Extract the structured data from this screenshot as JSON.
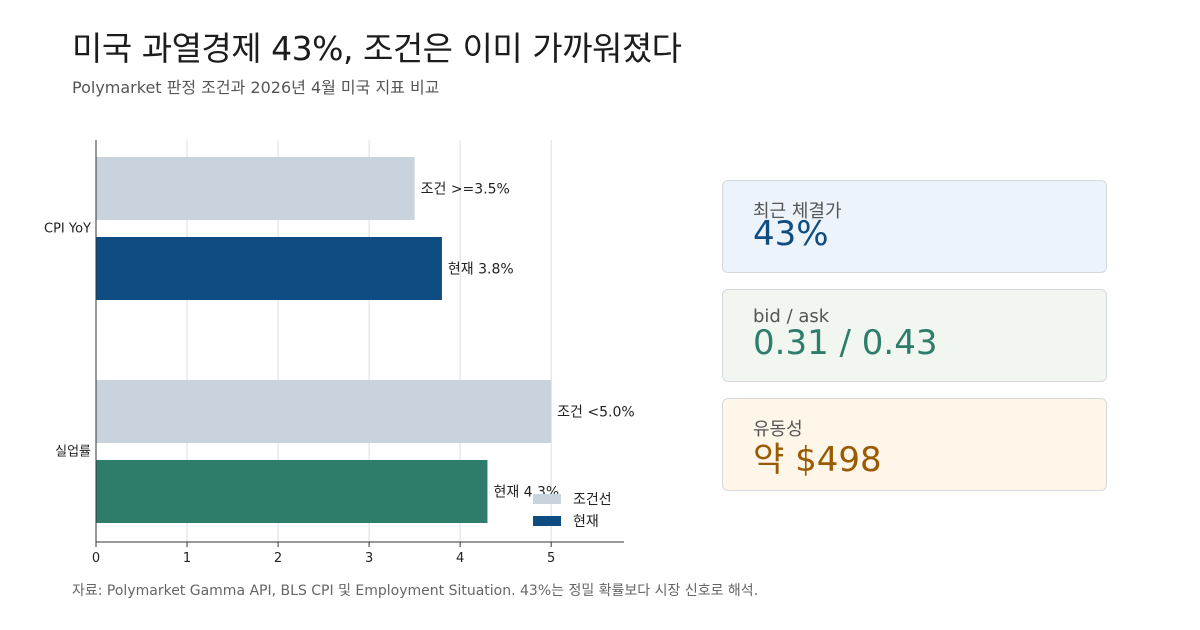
{
  "header": {
    "title": "미국 과열경제 43%, 조건은 이미 가까워졌다",
    "subtitle": "Polymarket 판정 조건과 2026년 4월 미국 지표 비교"
  },
  "chart_data": {
    "type": "bar",
    "orientation": "horizontal",
    "categories": [
      "CPI YoY",
      "실업률"
    ],
    "series": [
      {
        "name": "조건선",
        "values": [
          3.5,
          5.0
        ],
        "labels": [
          "조건 >=3.5%",
          "조건 <5.0%"
        ],
        "color": "#c9d3de"
      },
      {
        "name": "현재",
        "values": [
          3.8,
          4.3
        ],
        "labels": [
          "현재 3.8%",
          "현재 4.3%"
        ],
        "colors": [
          "#0f4c81",
          "#2e7d6b"
        ]
      }
    ],
    "xlim": [
      0,
      5.8
    ],
    "x_ticks": [
      "0",
      "1",
      "2",
      "3",
      "4",
      "5"
    ],
    "grid": true,
    "legend_position": "bottom-right"
  },
  "cards": [
    {
      "label": "최근 체결가",
      "value": "43%",
      "bg": "#edf3fa",
      "value_color": "#0f4c81"
    },
    {
      "label": "bid / ask",
      "value": "0.31 / 0.43",
      "bg": "#f1f6f1",
      "value_color": "#2e7d6b"
    },
    {
      "label": "유동성",
      "value": "약 $498",
      "bg": "#fdf6e9",
      "value_color": "#9a5a00"
    }
  ],
  "footer": {
    "source": "자료: Polymarket Gamma API, BLS CPI 및 Employment Situation. 43%는 정밀 확률보다 시장 신호로 해석."
  }
}
